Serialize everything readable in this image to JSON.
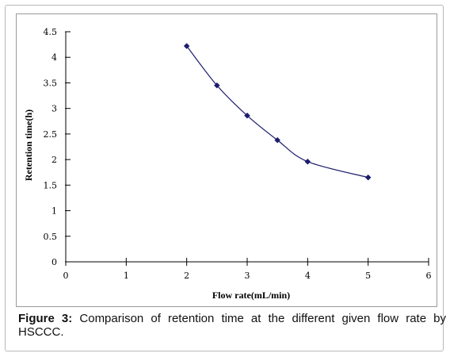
{
  "caption": {
    "label": "Figure 3:",
    "text": "Comparison of retention time at the different given flow rate by HSCCC."
  },
  "chart_data": {
    "type": "line",
    "xlabel": "Flow rate(mL/min)",
    "ylabel": "Retention time(h)",
    "xlim": [
      0,
      6
    ],
    "ylim": [
      0,
      4.5
    ],
    "xticks": [
      "0",
      "1",
      "2",
      "3",
      "4",
      "5",
      "6"
    ],
    "yticks": [
      "0",
      "0.5",
      "1",
      "1.5",
      "2",
      "2.5",
      "3",
      "3.5",
      "4",
      "4.5"
    ],
    "grid": false,
    "series": [
      {
        "x": [
          2,
          2.5,
          3,
          3.5,
          4,
          5
        ],
        "y": [
          4.22,
          3.45,
          2.86,
          2.38,
          1.96,
          1.65
        ],
        "color": "#1c1c6e",
        "marker": "diamond"
      }
    ]
  }
}
